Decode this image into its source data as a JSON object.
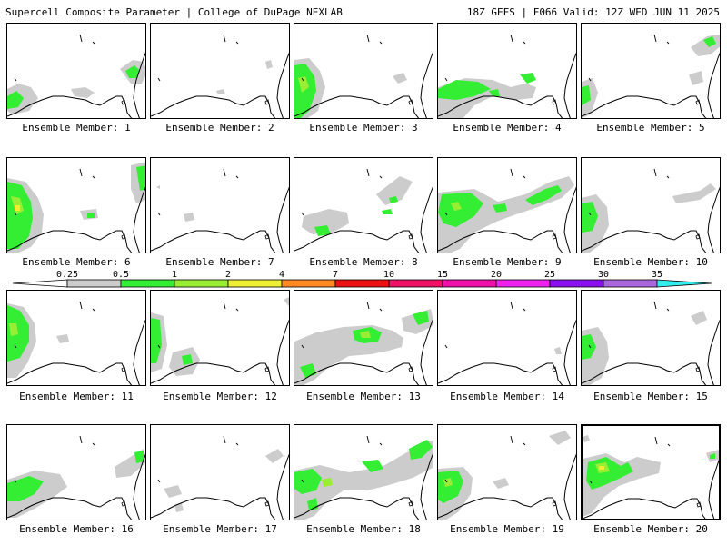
{
  "header": {
    "left": "Supercell Composite Parameter | College of DuPage NEXLAB",
    "right": "18Z GEFS | F066 Valid: 12Z WED JUN 11 2025"
  },
  "members": [
    {
      "label": "Ensemble Member: 1"
    },
    {
      "label": "Ensemble Member: 2"
    },
    {
      "label": "Ensemble Member: 3"
    },
    {
      "label": "Ensemble Member: 4"
    },
    {
      "label": "Ensemble Member: 5"
    },
    {
      "label": "Ensemble Member: 6"
    },
    {
      "label": "Ensemble Member: 7"
    },
    {
      "label": "Ensemble Member: 8"
    },
    {
      "label": "Ensemble Member: 9"
    },
    {
      "label": "Ensemble Member: 10"
    },
    {
      "label": "Ensemble Member: 11"
    },
    {
      "label": "Ensemble Member: 12"
    },
    {
      "label": "Ensemble Member: 13"
    },
    {
      "label": "Ensemble Member: 14"
    },
    {
      "label": "Ensemble Member: 15"
    },
    {
      "label": "Ensemble Member: 16"
    },
    {
      "label": "Ensemble Member: 17"
    },
    {
      "label": "Ensemble Member: 18"
    },
    {
      "label": "Ensemble Member: 19"
    },
    {
      "label": "Ensemble Member: 20"
    }
  ],
  "colorbar": {
    "levels": [
      "0.25",
      "0.5",
      "1",
      "2",
      "4",
      "7",
      "10",
      "15",
      "20",
      "25",
      "30",
      "35"
    ],
    "colors": [
      "#cccccc",
      "#33ee33",
      "#99ee33",
      "#eeee33",
      "#ff8822",
      "#ee1111",
      "#ee1166",
      "#ee11aa",
      "#ee22ee",
      "#8811ee",
      "#aa66dd",
      "#33eeee"
    ]
  }
}
